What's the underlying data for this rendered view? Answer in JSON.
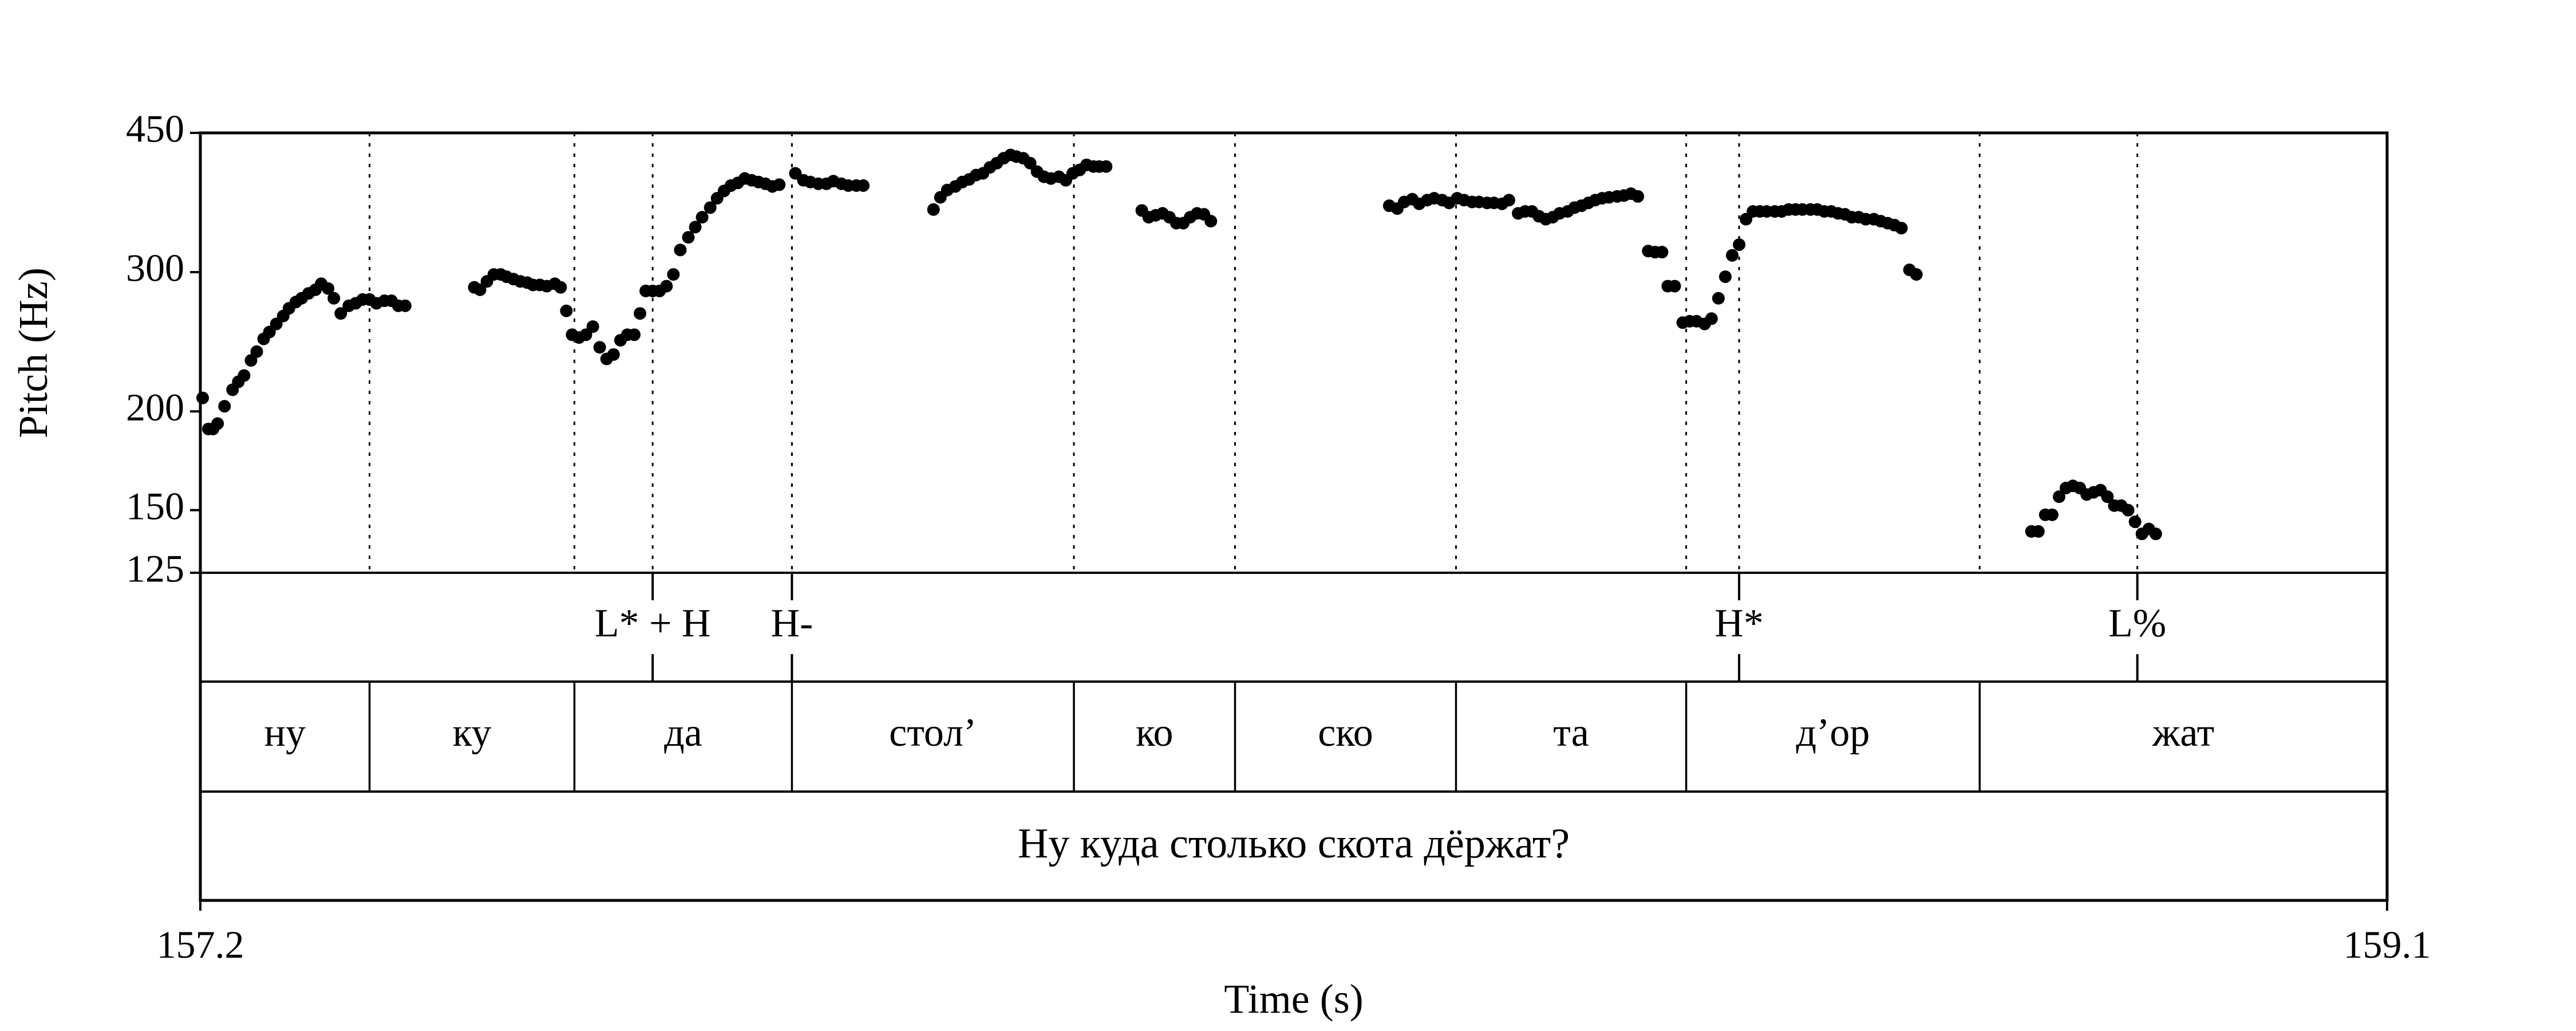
{
  "chart_data": {
    "type": "scatter",
    "xlabel": "Time (s)",
    "ylabel": "Pitch (Hz)",
    "xlim": [
      157.2,
      159.1
    ],
    "ylim": [
      125,
      450
    ],
    "y_scale": "log",
    "x_ticks": [
      "157.2",
      "159.1"
    ],
    "y_ticks": [
      {
        "value": 450,
        "label": "450"
      },
      {
        "value": 300,
        "label": "300"
      },
      {
        "value": 200,
        "label": "200"
      },
      {
        "value": 150,
        "label": "150"
      },
      {
        "value": 125,
        "label": "125"
      }
    ],
    "series": [
      {
        "points": [
          [
            157.202,
            208
          ],
          [
            157.207,
            190
          ],
          [
            157.211,
            190
          ],
          [
            157.215,
            193
          ],
          [
            157.221,
            203
          ],
          [
            157.228,
            213
          ],
          [
            157.233,
            218
          ],
          [
            157.238,
            222
          ],
          [
            157.244,
            232
          ],
          [
            157.249,
            238
          ],
          [
            157.255,
            247
          ],
          [
            157.26,
            252
          ],
          [
            157.266,
            258
          ],
          [
            157.272,
            264
          ],
          [
            157.277,
            270
          ],
          [
            157.283,
            275
          ],
          [
            157.288,
            278
          ],
          [
            157.294,
            282
          ],
          [
            157.3,
            285
          ],
          [
            157.305,
            290
          ],
          [
            157.311,
            286
          ],
          [
            157.316,
            278
          ],
          [
            157.322,
            266
          ],
          [
            157.329,
            272
          ],
          [
            157.335,
            274
          ],
          [
            157.341,
            277
          ],
          [
            157.347,
            277
          ],
          [
            157.353,
            274
          ],
          [
            157.36,
            276
          ],
          [
            157.366,
            276
          ],
          [
            157.372,
            272
          ],
          [
            157.378,
            272
          ],
          [
            157.438,
            287
          ],
          [
            157.443,
            285
          ],
          [
            157.449,
            292
          ],
          [
            157.455,
            298
          ],
          [
            157.461,
            298
          ],
          [
            157.466,
            296
          ],
          [
            157.472,
            294
          ],
          [
            157.478,
            292
          ],
          [
            157.484,
            291
          ],
          [
            157.489,
            289
          ],
          [
            157.495,
            289
          ],
          [
            157.501,
            288
          ],
          [
            157.508,
            290
          ],
          [
            157.513,
            287
          ],
          [
            157.518,
            268
          ],
          [
            157.523,
            250
          ],
          [
            157.529,
            248
          ],
          [
            157.535,
            250
          ],
          [
            157.541,
            256
          ],
          [
            157.547,
            241
          ],
          [
            157.553,
            233
          ],
          [
            157.559,
            236
          ],
          [
            157.565,
            246
          ],
          [
            157.571,
            250
          ],
          [
            157.577,
            250
          ],
          [
            157.582,
            266
          ],
          [
            157.587,
            284
          ],
          [
            157.593,
            284
          ],
          [
            157.599,
            284
          ],
          [
            157.605,
            288
          ],
          [
            157.611,
            298
          ],
          [
            157.617,
            320
          ],
          [
            157.624,
            332
          ],
          [
            157.63,
            342
          ],
          [
            157.636,
            352
          ],
          [
            157.643,
            362
          ],
          [
            157.649,
            372
          ],
          [
            157.655,
            380
          ],
          [
            157.661,
            386
          ],
          [
            157.667,
            389
          ],
          [
            157.673,
            394
          ],
          [
            157.679,
            392
          ],
          [
            157.685,
            390
          ],
          [
            157.691,
            388
          ],
          [
            157.697,
            385
          ],
          [
            157.703,
            387
          ],
          [
            157.717,
            400
          ],
          [
            157.724,
            392
          ],
          [
            157.73,
            390
          ],
          [
            157.737,
            388
          ],
          [
            157.744,
            388
          ],
          [
            157.75,
            391
          ],
          [
            157.757,
            388
          ],
          [
            157.763,
            386
          ],
          [
            157.77,
            386
          ],
          [
            157.776,
            386
          ],
          [
            157.837,
            360
          ],
          [
            157.843,
            373
          ],
          [
            157.849,
            381
          ],
          [
            157.856,
            385
          ],
          [
            157.862,
            390
          ],
          [
            157.868,
            393
          ],
          [
            157.874,
            398
          ],
          [
            157.88,
            400
          ],
          [
            157.886,
            407
          ],
          [
            157.892,
            412
          ],
          [
            157.898,
            418
          ],
          [
            157.904,
            422
          ],
          [
            157.909,
            420
          ],
          [
            157.915,
            418
          ],
          [
            157.921,
            412
          ],
          [
            157.927,
            402
          ],
          [
            157.933,
            396
          ],
          [
            157.939,
            394
          ],
          [
            157.946,
            396
          ],
          [
            157.952,
            392
          ],
          [
            157.958,
            400
          ],
          [
            157.964,
            404
          ],
          [
            157.97,
            410
          ],
          [
            157.976,
            408
          ],
          [
            157.981,
            408
          ],
          [
            157.987,
            408
          ],
          [
            158.018,
            359
          ],
          [
            158.024,
            352
          ],
          [
            158.03,
            354
          ],
          [
            158.036,
            356
          ],
          [
            158.042,
            352
          ],
          [
            158.048,
            346
          ],
          [
            158.054,
            346
          ],
          [
            158.06,
            352
          ],
          [
            158.066,
            356
          ],
          [
            158.072,
            355
          ],
          [
            158.078,
            348
          ],
          [
            158.233,
            364
          ],
          [
            158.24,
            361
          ],
          [
            158.246,
            368
          ],
          [
            158.253,
            371
          ],
          [
            158.259,
            366
          ],
          [
            158.266,
            370
          ],
          [
            158.272,
            372
          ],
          [
            158.279,
            370
          ],
          [
            158.285,
            367
          ],
          [
            158.292,
            372
          ],
          [
            158.298,
            370
          ],
          [
            158.305,
            368
          ],
          [
            158.311,
            368
          ],
          [
            158.318,
            367
          ],
          [
            158.324,
            367
          ],
          [
            158.331,
            366
          ],
          [
            158.337,
            370
          ],
          [
            158.345,
            356
          ],
          [
            158.351,
            358
          ],
          [
            158.357,
            358
          ],
          [
            158.363,
            353
          ],
          [
            158.369,
            350
          ],
          [
            158.375,
            352
          ],
          [
            158.381,
            356
          ],
          [
            158.388,
            358
          ],
          [
            158.394,
            362
          ],
          [
            158.4,
            364
          ],
          [
            158.406,
            367
          ],
          [
            158.412,
            370
          ],
          [
            158.418,
            372
          ],
          [
            158.424,
            373
          ],
          [
            158.431,
            374
          ],
          [
            158.437,
            375
          ],
          [
            158.443,
            377
          ],
          [
            158.449,
            374
          ],
          [
            158.458,
            319
          ],
          [
            158.464,
            318
          ],
          [
            158.47,
            318
          ],
          [
            158.475,
            288
          ],
          [
            158.481,
            288
          ],
          [
            158.488,
            259
          ],
          [
            158.494,
            260
          ],
          [
            158.5,
            260
          ],
          [
            158.507,
            258
          ],
          [
            158.513,
            262
          ],
          [
            158.519,
            278
          ],
          [
            158.525,
            296
          ],
          [
            158.531,
            315
          ],
          [
            158.537,
            325
          ],
          [
            158.543,
            350
          ],
          [
            158.549,
            358
          ],
          [
            158.555,
            358
          ],
          [
            158.561,
            358
          ],
          [
            158.568,
            358
          ],
          [
            158.574,
            358
          ],
          [
            158.58,
            360
          ],
          [
            158.586,
            360
          ],
          [
            158.592,
            360
          ],
          [
            158.599,
            360
          ],
          [
            158.605,
            360
          ],
          [
            158.611,
            358
          ],
          [
            158.617,
            358
          ],
          [
            158.623,
            356
          ],
          [
            158.629,
            355
          ],
          [
            158.635,
            352
          ],
          [
            158.641,
            352
          ],
          [
            158.647,
            350
          ],
          [
            158.654,
            350
          ],
          [
            158.66,
            348
          ],
          [
            158.666,
            346
          ],
          [
            158.672,
            344
          ],
          [
            158.678,
            341
          ],
          [
            158.685,
            302
          ],
          [
            158.691,
            298
          ],
          [
            158.791,
            141
          ],
          [
            158.797,
            141
          ],
          [
            158.803,
            148
          ],
          [
            158.809,
            148
          ],
          [
            158.815,
            156
          ],
          [
            158.821,
            160
          ],
          [
            158.827,
            161
          ],
          [
            158.833,
            160
          ],
          [
            158.839,
            157
          ],
          [
            158.845,
            158
          ],
          [
            158.851,
            159
          ],
          [
            158.857,
            156
          ],
          [
            158.863,
            152
          ],
          [
            158.869,
            152
          ],
          [
            158.875,
            150
          ],
          [
            158.881,
            145
          ],
          [
            158.887,
            140
          ],
          [
            158.893,
            142
          ],
          [
            158.899,
            140
          ]
        ]
      }
    ],
    "tone_tier": {
      "labels": [
        {
          "time": 157.593,
          "text": "L* + H"
        },
        {
          "time": 157.714,
          "text": "H-"
        },
        {
          "time": 158.537,
          "text": "H*"
        },
        {
          "time": 158.883,
          "text": "L%"
        }
      ],
      "ticks": [
        157.593,
        157.714,
        158.537,
        158.883
      ]
    },
    "syllable_tier": {
      "boundaries": [
        157.2,
        157.347,
        157.525,
        157.714,
        157.959,
        158.099,
        158.291,
        158.491,
        158.746,
        159.1
      ],
      "labels": [
        "ну",
        "ку",
        "да",
        "стол’",
        "ко",
        "ско",
        "та",
        "д’ор",
        "жат"
      ]
    },
    "sentence_tier": {
      "text": "Ну куда столько скота дёржат?"
    }
  }
}
